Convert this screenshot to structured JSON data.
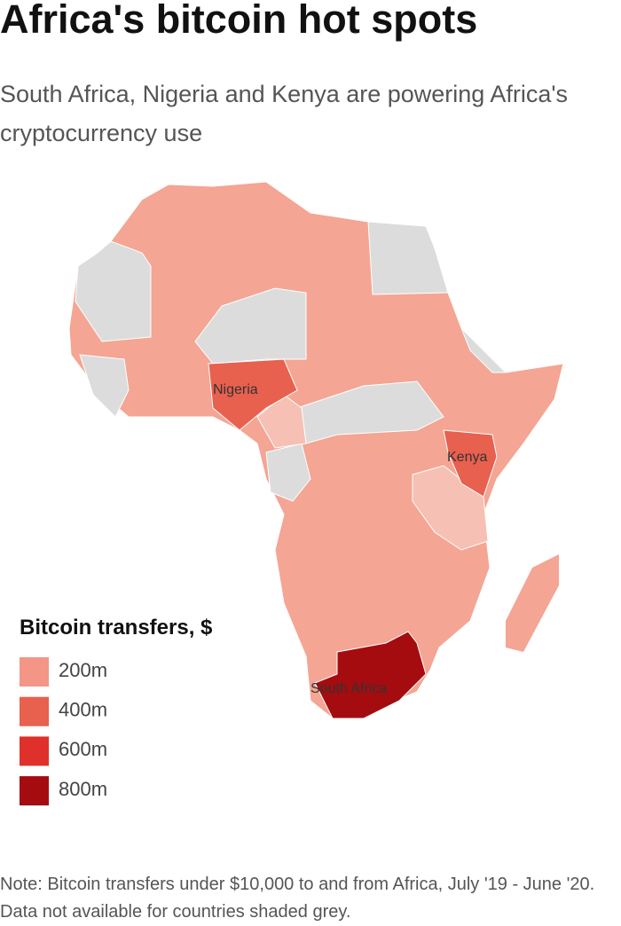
{
  "header": {
    "title": "Africa's bitcoin hot spots",
    "subtitle": "South Africa, Nigeria and Kenya are powering Africa's cryptocurrency use"
  },
  "map": {
    "countries": [
      {
        "name": "Nigeria",
        "color": "#e8604e"
      },
      {
        "name": "Kenya",
        "color": "#e8604e"
      },
      {
        "name": "South Africa",
        "color": "#a50c10"
      }
    ]
  },
  "legend": {
    "title": "Bitcoin transfers, $",
    "items": [
      {
        "label": "200m",
        "color": "#f39686"
      },
      {
        "label": "400m",
        "color": "#e8604e"
      },
      {
        "label": "600m",
        "color": "#e0302b"
      },
      {
        "label": "800m",
        "color": "#a50c10"
      }
    ]
  },
  "note": "Note: Bitcoin transfers under $10,000 to and from Africa, July '19 - June '20. Data not available for countries shaded grey."
}
